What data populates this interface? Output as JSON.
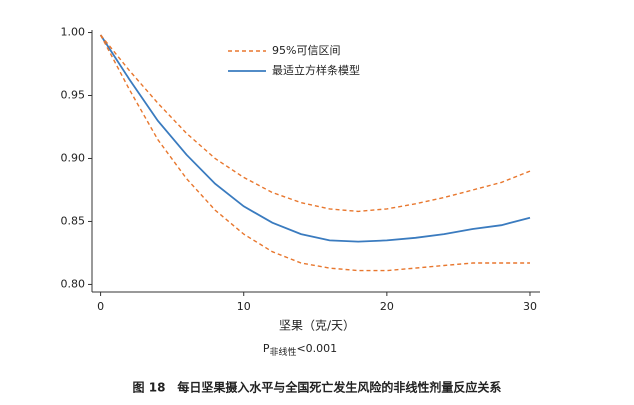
{
  "chart_data": {
    "type": "line",
    "x": [
      0,
      2,
      4,
      6,
      8,
      10,
      12,
      14,
      16,
      18,
      20,
      22,
      24,
      26,
      28,
      30
    ],
    "series": [
      {
        "name": "最适立方样条模型",
        "color": "#3a7bbf",
        "dashed": false,
        "values": [
          0.998,
          0.963,
          0.93,
          0.903,
          0.88,
          0.862,
          0.849,
          0.84,
          0.835,
          0.834,
          0.835,
          0.837,
          0.84,
          0.844,
          0.847,
          0.853
        ]
      },
      {
        "name": "95%可信区间",
        "color": "#e8772e",
        "dashed": true,
        "values": [
          0.998,
          0.97,
          0.944,
          0.92,
          0.9,
          0.885,
          0.873,
          0.865,
          0.86,
          0.858,
          0.86,
          0.864,
          0.869,
          0.875,
          0.881,
          0.89
        ]
      },
      {
        "color": "#e8772e",
        "dashed": true,
        "values": [
          0.998,
          0.955,
          0.915,
          0.884,
          0.859,
          0.84,
          0.826,
          0.817,
          0.813,
          0.811,
          0.811,
          0.813,
          0.815,
          0.817,
          0.817,
          0.817
        ]
      }
    ],
    "xlim": [
      -0.6,
      30.7
    ],
    "xticks": [
      0,
      10,
      20,
      30
    ],
    "ylim": [
      0.794,
      1.002
    ],
    "yticks": [
      {
        "value": 0.8,
        "label": "0.80"
      },
      {
        "value": 0.85,
        "label": "0.85"
      },
      {
        "value": 0.9,
        "label": "0.90"
      },
      {
        "value": 0.95,
        "label": "0.95"
      },
      {
        "value": 1.0,
        "label": "1.00"
      }
    ],
    "x_label": "坚果（克/天）",
    "annotation": {
      "prefix": "P",
      "subscript": "非线性",
      "suffix": "<0.001"
    },
    "caption": "图 18　每日坚果摄入水平与全国死亡发生风险的非线性剂量反应关系"
  }
}
